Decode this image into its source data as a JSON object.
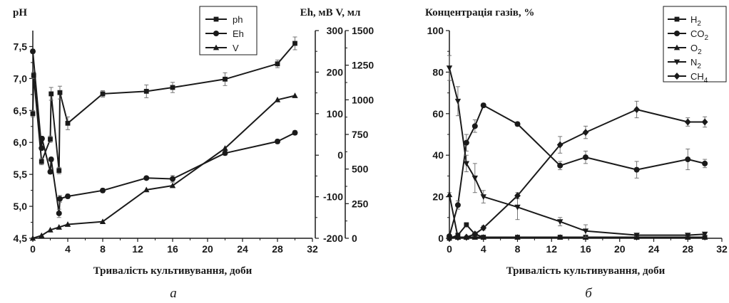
{
  "panels": [
    {
      "letter": "а"
    },
    {
      "letter": "б"
    }
  ],
  "chart_data": [
    {
      "type": "line",
      "panel_letter": "а",
      "xlabel": "Тривалість культивування, доби",
      "ylabel_left": "pH",
      "ylabel_right": "Eh, мВ V, мл",
      "xlim": [
        0,
        32
      ],
      "xticks": [
        "0",
        "4",
        "8",
        "12",
        "16",
        "20",
        "24",
        "28",
        "32"
      ],
      "ylim_left": [
        4.5,
        7.75
      ],
      "yticks_left": [
        "4,5",
        "5,0",
        "5,5",
        "6,0",
        "6,5",
        "7,0",
        "7,5"
      ],
      "ylim_eh": [
        -200,
        300
      ],
      "yticks_eh": [
        "-200",
        "-100",
        "0",
        "100",
        "200",
        "300"
      ],
      "ylim_v": [
        0,
        1500
      ],
      "yticks_v": [
        "0",
        "250",
        "500",
        "750",
        "1000",
        "1250",
        "1500"
      ],
      "legend_position": "top-right",
      "series": [
        {
          "name": "ph",
          "marker": "square",
          "axis": "left",
          "x": [
            0,
            0.1,
            1,
            2,
            2.1,
            3,
            3.1,
            4,
            8,
            13,
            16,
            22,
            28,
            30
          ],
          "y": [
            6.45,
            7.05,
            5.7,
            6.05,
            6.76,
            5.56,
            6.78,
            6.3,
            6.76,
            6.8,
            6.86,
            6.99,
            7.23,
            7.55
          ],
          "err": [
            0.05,
            0.05,
            0.05,
            0.05,
            0.1,
            0.05,
            0.1,
            0.1,
            0.05,
            0.1,
            0.08,
            0.1,
            0.06,
            0.1
          ]
        },
        {
          "name": "Eh",
          "marker": "circle",
          "axis": "eh",
          "x": [
            0,
            1,
            1.05,
            2,
            2.1,
            3,
            3.1,
            4,
            8,
            13,
            16,
            22,
            28,
            30
          ],
          "y": [
            250,
            17,
            40,
            -40,
            -10,
            -140,
            -105,
            -99,
            -85,
            -55,
            -57,
            5,
            33,
            54
          ],
          "err": [
            5,
            5,
            5,
            5,
            5,
            10,
            8,
            5,
            5,
            4,
            8,
            5,
            5,
            5
          ]
        },
        {
          "name": "V",
          "marker": "triangle-up",
          "axis": "v",
          "x": [
            0,
            1,
            2,
            3,
            4,
            8,
            13,
            16,
            22,
            28,
            30
          ],
          "y": [
            0,
            20,
            60,
            80,
            100,
            120,
            350,
            380,
            650,
            1000,
            1030
          ],
          "err": [
            0,
            0,
            0,
            0,
            0,
            0,
            0,
            0,
            0,
            0,
            0
          ]
        }
      ]
    },
    {
      "type": "line",
      "panel_letter": "б",
      "title": "Концентрація газів, %",
      "xlabel": "Тривалість культивування, доби",
      "xlim": [
        0,
        32
      ],
      "xticks": [
        "0",
        "4",
        "8",
        "12",
        "16",
        "20",
        "24",
        "28",
        "32"
      ],
      "ylim": [
        0,
        100
      ],
      "yticks": [
        "0",
        "20",
        "40",
        "60",
        "80",
        "100"
      ],
      "legend_position": "top-right",
      "series": [
        {
          "name": "H2",
          "label_main": "H",
          "label_sub": "2",
          "marker": "square",
          "x": [
            0,
            1,
            2,
            3,
            4,
            8,
            13,
            16,
            22,
            28,
            30
          ],
          "y": [
            0,
            1.5,
            6.5,
            2,
            0.5,
            0.5,
            0.5,
            0.5,
            0.5,
            0.5,
            0.5
          ],
          "err": [
            0,
            0.5,
            1,
            0.5,
            0,
            0,
            0,
            0,
            0,
            0,
            0
          ]
        },
        {
          "name": "CO2",
          "label_main": "CO",
          "label_sub": "2",
          "marker": "circle",
          "x": [
            0,
            1,
            2,
            3,
            4,
            8,
            13,
            16,
            22,
            28,
            30
          ],
          "y": [
            1,
            16,
            46,
            54,
            64,
            55,
            35,
            39,
            33,
            38,
            36
          ],
          "err": [
            0.5,
            2,
            4,
            3,
            1,
            1,
            2,
            3,
            4,
            5,
            2
          ]
        },
        {
          "name": "O2",
          "label_main": "O",
          "label_sub": "2",
          "marker": "triangle-up",
          "x": [
            0,
            1,
            2,
            3,
            4,
            8,
            13,
            16,
            22,
            28,
            30
          ],
          "y": [
            21,
            0.5,
            0.5,
            0.5,
            0.5,
            0.5,
            0.5,
            0.5,
            0.5,
            0.5,
            0.5
          ],
          "err": [
            1,
            0,
            0,
            0,
            0,
            0,
            0,
            0,
            0,
            0,
            0
          ]
        },
        {
          "name": "N2",
          "label_main": "N",
          "label_sub": "2",
          "marker": "triangle-down",
          "x": [
            0,
            1,
            2,
            3,
            4,
            8,
            13,
            16,
            22,
            28,
            30
          ],
          "y": [
            82,
            66,
            36,
            29,
            20,
            15,
            8,
            3.5,
            1.5,
            1.5,
            2
          ],
          "err": [
            6,
            7,
            4,
            7,
            3,
            6,
            2,
            3,
            0.5,
            0.5,
            0.5
          ]
        },
        {
          "name": "CH4",
          "label_main": "CH",
          "label_sub": "4",
          "marker": "diamond",
          "x": [
            0,
            1,
            2,
            3,
            4,
            8,
            13,
            16,
            22,
            28,
            30
          ],
          "y": [
            0,
            0.5,
            0.5,
            2,
            5,
            20.5,
            45,
            51,
            62,
            56,
            56
          ],
          "err": [
            0,
            0,
            0,
            1,
            1,
            1.5,
            4,
            3,
            4,
            2,
            2.5
          ]
        }
      ]
    }
  ]
}
